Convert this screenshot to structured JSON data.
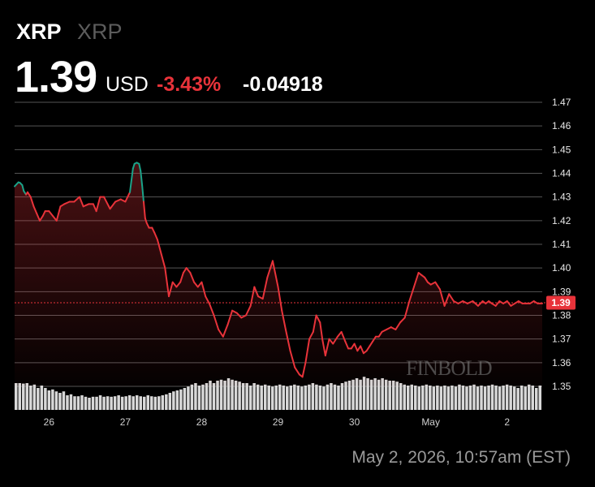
{
  "header": {
    "symbol": "XRP",
    "name": "XRP",
    "price": "1.39",
    "currency": "USD",
    "change_pct": "-3.43%",
    "change_abs": "-0.04918"
  },
  "timestamp": "May 2, 2026, 10:57am (EST)",
  "watermark": "FINBOLD",
  "colors": {
    "down": "#e8333a",
    "up": "#1aa389",
    "volume": "#d8d8d8",
    "grid": "#555555",
    "dotted": "#e8333a",
    "bg": "#000000"
  },
  "chart_data": {
    "type": "line",
    "x_ticks": [
      "26",
      "27",
      "28",
      "29",
      "30",
      "May",
      "2"
    ],
    "ylim": [
      1.3475,
      1.47
    ],
    "y_ticks": [
      1.35,
      1.36,
      1.37,
      1.38,
      1.39,
      1.4,
      1.41,
      1.42,
      1.43,
      1.44,
      1.45,
      1.46,
      1.47
    ],
    "last_value_label": "1.39",
    "last_value": 1.3853,
    "series": [
      {
        "x": [
          25.55,
          25.6,
          25.62,
          25.65,
          25.67,
          25.7,
          25.72,
          25.76,
          25.8,
          25.84,
          25.88,
          25.92,
          25.95,
          26.0,
          26.05,
          26.1,
          26.15,
          26.2,
          26.27,
          26.33,
          26.4,
          26.45,
          26.52,
          26.58,
          26.62,
          26.67,
          26.72,
          26.8,
          26.87,
          26.94,
          27.0,
          27.06,
          27.1,
          27.12,
          27.15,
          27.18,
          27.2,
          27.22,
          27.24,
          27.26,
          27.28,
          27.31,
          27.35,
          27.38,
          27.42,
          27.47,
          27.52,
          27.57,
          27.62,
          27.67,
          27.72,
          27.76,
          27.8,
          27.85,
          27.9,
          27.95,
          28.0,
          28.05,
          28.1,
          28.16,
          28.22,
          28.28,
          28.34,
          28.4,
          28.46,
          28.52,
          28.58,
          28.64,
          28.69,
          28.74,
          28.8,
          28.86,
          28.93,
          29.0,
          29.05,
          29.1,
          29.16,
          29.22,
          29.28,
          29.32,
          29.36,
          29.41,
          29.46,
          29.5,
          29.55,
          29.58,
          29.62,
          29.67,
          29.72,
          29.78,
          29.83,
          29.88,
          29.92,
          29.96,
          30.0,
          30.04,
          30.08,
          30.12,
          30.16,
          30.2,
          30.24,
          30.28,
          30.32,
          30.36,
          30.42,
          30.48,
          30.54,
          30.6,
          30.66,
          30.72,
          30.78,
          30.84,
          30.88,
          30.92,
          30.96,
          31.0,
          31.06,
          31.12,
          31.18,
          31.24,
          31.3,
          31.36,
          31.42,
          31.48,
          31.55,
          31.62,
          31.68,
          31.72,
          31.76,
          31.8,
          31.85,
          31.9,
          31.95,
          32.0,
          32.05,
          32.1,
          32.15,
          32.2,
          32.25,
          32.3,
          32.35,
          32.4,
          32.46
        ],
        "y": [
          1.4345,
          1.4362,
          1.436,
          1.435,
          1.4325,
          1.431,
          1.432,
          1.43,
          1.426,
          1.423,
          1.42,
          1.422,
          1.424,
          1.424,
          1.422,
          1.42,
          1.426,
          1.427,
          1.428,
          1.428,
          1.43,
          1.426,
          1.427,
          1.427,
          1.424,
          1.43,
          1.43,
          1.425,
          1.428,
          1.429,
          1.428,
          1.432,
          1.442,
          1.444,
          1.4445,
          1.444,
          1.441,
          1.435,
          1.428,
          1.421,
          1.419,
          1.417,
          1.417,
          1.415,
          1.412,
          1.406,
          1.4,
          1.388,
          1.394,
          1.392,
          1.394,
          1.398,
          1.4,
          1.398,
          1.394,
          1.392,
          1.394,
          1.388,
          1.385,
          1.38,
          1.374,
          1.371,
          1.376,
          1.382,
          1.381,
          1.379,
          1.38,
          1.384,
          1.392,
          1.388,
          1.387,
          1.396,
          1.403,
          1.392,
          1.382,
          1.374,
          1.365,
          1.358,
          1.355,
          1.354,
          1.36,
          1.37,
          1.373,
          1.38,
          1.377,
          1.37,
          1.363,
          1.37,
          1.368,
          1.371,
          1.373,
          1.369,
          1.366,
          1.366,
          1.368,
          1.365,
          1.367,
          1.364,
          1.365,
          1.367,
          1.369,
          1.371,
          1.371,
          1.373,
          1.374,
          1.375,
          1.374,
          1.377,
          1.379,
          1.386,
          1.392,
          1.398,
          1.397,
          1.396,
          1.394,
          1.393,
          1.394,
          1.391,
          1.384,
          1.389,
          1.386,
          1.385,
          1.386,
          1.385,
          1.386,
          1.384,
          1.386,
          1.385,
          1.386,
          1.385,
          1.384,
          1.386,
          1.385,
          1.386,
          1.384,
          1.385,
          1.386,
          1.385,
          1.385,
          1.385,
          1.386,
          1.385,
          1.385
        ],
        "up_segments_x": [
          [
            25.55,
            25.7
          ],
          [
            27.06,
            27.24
          ]
        ]
      }
    ],
    "volume": [
      0.55,
      0.55,
      0.54,
      0.55,
      0.5,
      0.52,
      0.45,
      0.5,
      0.45,
      0.4,
      0.42,
      0.38,
      0.35,
      0.38,
      0.3,
      0.32,
      0.28,
      0.28,
      0.3,
      0.27,
      0.25,
      0.27,
      0.27,
      0.3,
      0.27,
      0.28,
      0.27,
      0.28,
      0.3,
      0.27,
      0.28,
      0.3,
      0.28,
      0.3,
      0.28,
      0.27,
      0.3,
      0.28,
      0.27,
      0.28,
      0.3,
      0.32,
      0.35,
      0.38,
      0.4,
      0.42,
      0.45,
      0.48,
      0.52,
      0.55,
      0.5,
      0.52,
      0.55,
      0.6,
      0.55,
      0.6,
      0.62,
      0.6,
      0.65,
      0.62,
      0.6,
      0.58,
      0.55,
      0.55,
      0.5,
      0.55,
      0.52,
      0.5,
      0.52,
      0.5,
      0.48,
      0.5,
      0.52,
      0.5,
      0.48,
      0.5,
      0.52,
      0.5,
      0.48,
      0.5,
      0.52,
      0.55,
      0.52,
      0.5,
      0.48,
      0.52,
      0.55,
      0.52,
      0.5,
      0.55,
      0.58,
      0.6,
      0.62,
      0.65,
      0.62,
      0.68,
      0.65,
      0.62,
      0.65,
      0.62,
      0.65,
      0.62,
      0.6,
      0.6,
      0.58,
      0.55,
      0.52,
      0.5,
      0.52,
      0.5,
      0.48,
      0.5,
      0.52,
      0.5,
      0.48,
      0.5,
      0.48,
      0.5,
      0.48,
      0.5,
      0.48,
      0.52,
      0.5,
      0.48,
      0.5,
      0.52,
      0.48,
      0.5,
      0.48,
      0.5,
      0.52,
      0.5,
      0.48,
      0.5,
      0.52,
      0.5,
      0.48,
      0.45,
      0.5,
      0.48,
      0.52,
      0.5,
      0.45,
      0.5
    ]
  }
}
